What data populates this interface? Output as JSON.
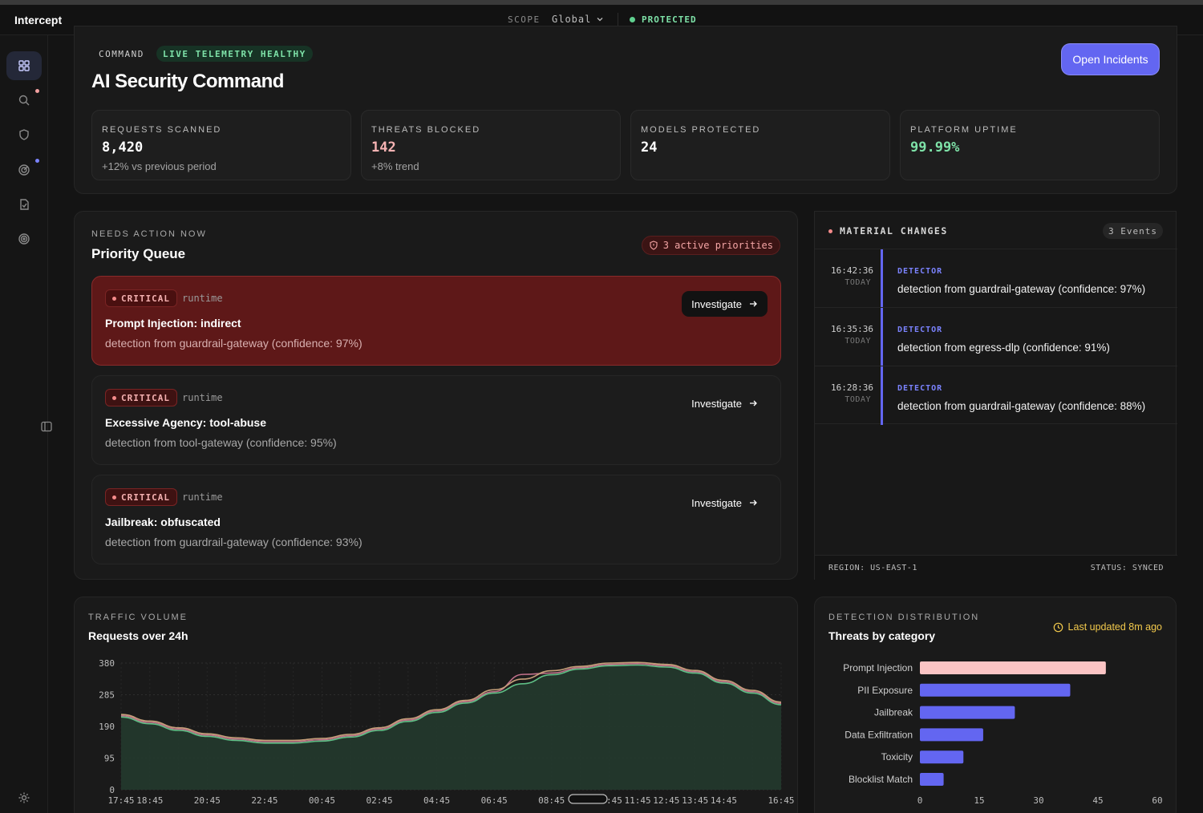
{
  "app": {
    "name": "Intercept"
  },
  "topbar": {
    "scope_label": "SCOPE",
    "scope_value": "Global",
    "status": "PROTECTED"
  },
  "header": {
    "eyebrow": "COMMAND",
    "telemetry_chip": "LIVE TELEMETRY HEALTHY",
    "title": "AI Security Command",
    "open_incidents_label": "Open Incidents"
  },
  "stats": [
    {
      "label": "REQUESTS SCANNED",
      "value": "8,420",
      "sub": "+12% vs previous period",
      "color": "#ffffff"
    },
    {
      "label": "THREATS BLOCKED",
      "value": "142",
      "sub": "+8% trend",
      "color": "#f6b3b3"
    },
    {
      "label": "MODELS PROTECTED",
      "value": "24",
      "sub": "",
      "color": "#ffffff"
    },
    {
      "label": "PLATFORM UPTIME",
      "value": "99.99%",
      "sub": "",
      "color": "#7ee2a8"
    }
  ],
  "queue": {
    "eyebrow": "NEEDS ACTION NOW",
    "title": "Priority Queue",
    "priorities_chip": "3 active priorities",
    "items": [
      {
        "severity": "CRITICAL",
        "source": "runtime",
        "title": "Prompt Injection: indirect",
        "desc": "detection from guardrail-gateway (confidence: 97%)",
        "action": "Investigate"
      },
      {
        "severity": "CRITICAL",
        "source": "runtime",
        "title": "Excessive Agency: tool-abuse",
        "desc": "detection from tool-gateway (confidence: 95%)",
        "action": "Investigate"
      },
      {
        "severity": "CRITICAL",
        "source": "runtime",
        "title": "Jailbreak: obfuscated",
        "desc": "detection from guardrail-gateway (confidence: 93%)",
        "action": "Investigate"
      }
    ]
  },
  "changes": {
    "title": "MATERIAL CHANGES",
    "count": "3 Events",
    "events": [
      {
        "time": "16:42:36",
        "day": "TODAY",
        "kind": "DETECTOR",
        "msg": "detection from guardrail-gateway (confidence: 97%)"
      },
      {
        "time": "16:35:36",
        "day": "TODAY",
        "kind": "DETECTOR",
        "msg": "detection from egress-dlp (confidence: 91%)"
      },
      {
        "time": "16:28:36",
        "day": "TODAY",
        "kind": "DETECTOR",
        "msg": "detection from guardrail-gateway (confidence: 88%)"
      }
    ],
    "region": "REGION: US-EAST-1",
    "status": "STATUS: SYNCED"
  },
  "traffic": {
    "eyebrow": "TRAFFIC VOLUME",
    "title": "Requests over 24h"
  },
  "distribution": {
    "eyebrow": "DETECTION DISTRIBUTION",
    "title": "Threats by category",
    "updated": "Last updated 8m ago"
  },
  "chart_data": [
    {
      "type": "area",
      "title": "Requests over 24h",
      "x": [
        "17:45",
        "18:45",
        "19:45",
        "20:45",
        "21:45",
        "22:45",
        "23:45",
        "00:45",
        "01:45",
        "02:45",
        "03:45",
        "04:45",
        "05:45",
        "06:45",
        "07:45",
        "08:45",
        "09:45",
        "10:45",
        "11:45",
        "12:45",
        "13:45",
        "14:45",
        "15:45",
        "16:45"
      ],
      "x_tick_labels": [
        "17:45",
        "18:45",
        "20:45",
        "22:45",
        "00:45",
        "02:45",
        "04:45",
        "06:45",
        "08:45",
        "10:45",
        "11:45",
        "12:45",
        "13:45",
        "14:45",
        "16:45"
      ],
      "ylim": [
        0,
        380
      ],
      "yticks": [
        0,
        95,
        190,
        285,
        380
      ],
      "grid": true,
      "series": [
        {
          "values": [
            218,
            198,
            178,
            160,
            148,
            140,
            140,
            146,
            158,
            178,
            205,
            232,
            260,
            290,
            318,
            345,
            362,
            372,
            374,
            368,
            350,
            320,
            290,
            255
          ],
          "color": "#5fbf86",
          "fill": "#233a2d"
        },
        {
          "values": [
            226,
            206,
            186,
            168,
            156,
            148,
            148,
            154,
            166,
            186,
            213,
            240,
            268,
            300,
            332,
            357,
            370,
            380,
            382,
            376,
            358,
            328,
            298,
            263
          ],
          "color": "#c6a07a"
        },
        {
          "values": [
            222,
            202,
            182,
            164,
            152,
            144,
            144,
            150,
            162,
            182,
            209,
            236,
            264,
            294,
            346,
            350,
            366,
            376,
            378,
            372,
            354,
            324,
            294,
            259
          ],
          "color": "#c0708a"
        }
      ]
    },
    {
      "type": "bar",
      "title": "Threats by category",
      "orientation": "horizontal",
      "categories": [
        "Prompt Injection",
        "PII Exposure",
        "Jailbreak",
        "Data Exfiltration",
        "Toxicity",
        "Blocklist Match"
      ],
      "values": [
        47,
        38,
        24,
        16,
        11,
        6
      ],
      "xlim": [
        0,
        60
      ],
      "xticks": [
        0,
        15,
        30,
        45,
        60
      ],
      "colors": [
        "#fbc4c4",
        "#6366f1",
        "#6366f1",
        "#6366f1",
        "#6366f1",
        "#6366f1"
      ]
    }
  ]
}
